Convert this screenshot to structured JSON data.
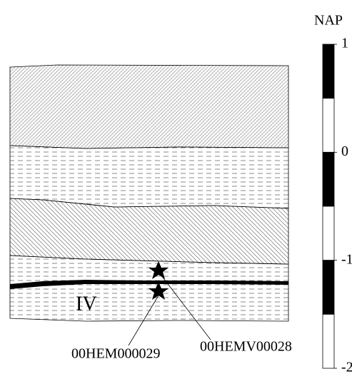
{
  "scale": {
    "title": "NAP",
    "ticks": [
      1,
      0,
      -1,
      -2
    ],
    "range": [
      1,
      -2
    ]
  },
  "layer_label": "IV",
  "samples": [
    "00HEM000029",
    "00HEMV00028"
  ]
}
